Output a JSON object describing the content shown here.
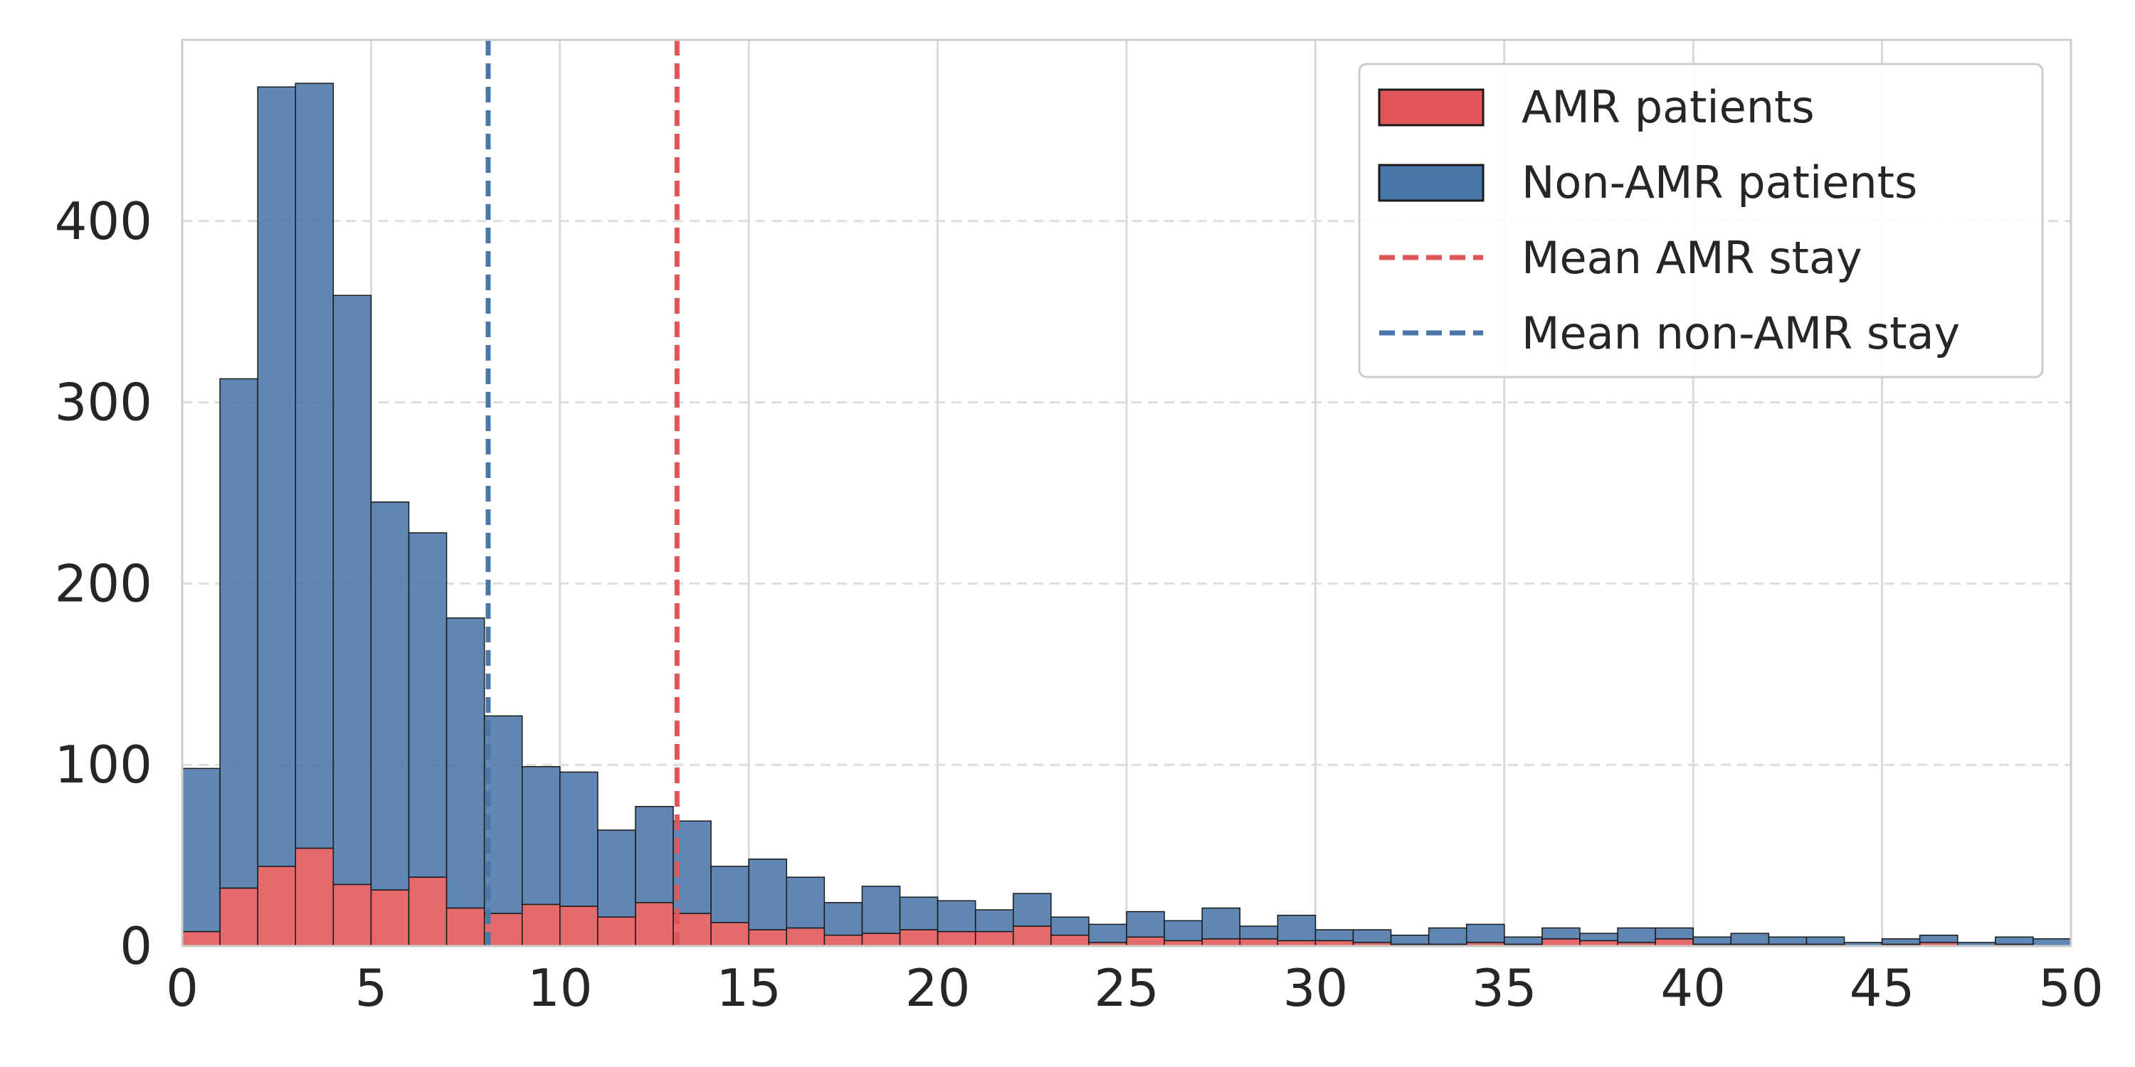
{
  "chart_data": {
    "type": "bar",
    "title": "",
    "xlabel": "",
    "ylabel": "",
    "xlim": [
      0,
      50
    ],
    "ylim": [
      0,
      500
    ],
    "x_ticks": [
      "0",
      "5",
      "10",
      "15",
      "20",
      "25",
      "30",
      "35",
      "40",
      "45",
      "50"
    ],
    "y_ticks": [
      "0",
      "100",
      "200",
      "300",
      "400"
    ],
    "bin_width": 1,
    "bin_start": 0,
    "grid": true,
    "legend_position": "top-right",
    "stacked": true,
    "series": [
      {
        "name": "AMR patients",
        "color": "#e05558",
        "values": [
          8,
          32,
          44,
          54,
          34,
          31,
          38,
          21,
          18,
          23,
          22,
          16,
          24,
          18,
          13,
          9,
          10,
          6,
          7,
          9,
          8,
          8,
          11,
          6,
          2,
          5,
          3,
          4,
          4,
          3,
          3,
          2,
          1,
          1,
          2,
          1,
          4,
          3,
          2,
          4,
          1,
          1,
          1,
          1,
          0,
          1,
          2,
          0,
          1,
          0
        ]
      },
      {
        "name": "Non-AMR patients",
        "color": "#4a76a8",
        "values": [
          90,
          281,
          430,
          422,
          325,
          214,
          190,
          160,
          109,
          76,
          74,
          48,
          53,
          51,
          31,
          39,
          28,
          18,
          26,
          18,
          17,
          12,
          18,
          10,
          10,
          14,
          11,
          17,
          7,
          14,
          6,
          7,
          5,
          9,
          10,
          4,
          6,
          4,
          8,
          6,
          4,
          6,
          4,
          4,
          2,
          3,
          4,
          2,
          4,
          4
        ]
      }
    ],
    "reference_lines": [
      {
        "name": "Mean AMR stay",
        "x": 13.1,
        "color": "#e05558",
        "style": "dashed"
      },
      {
        "name": "Mean non-AMR stay",
        "x": 8.1,
        "color": "#4a76a8",
        "style": "dashed"
      }
    ]
  }
}
